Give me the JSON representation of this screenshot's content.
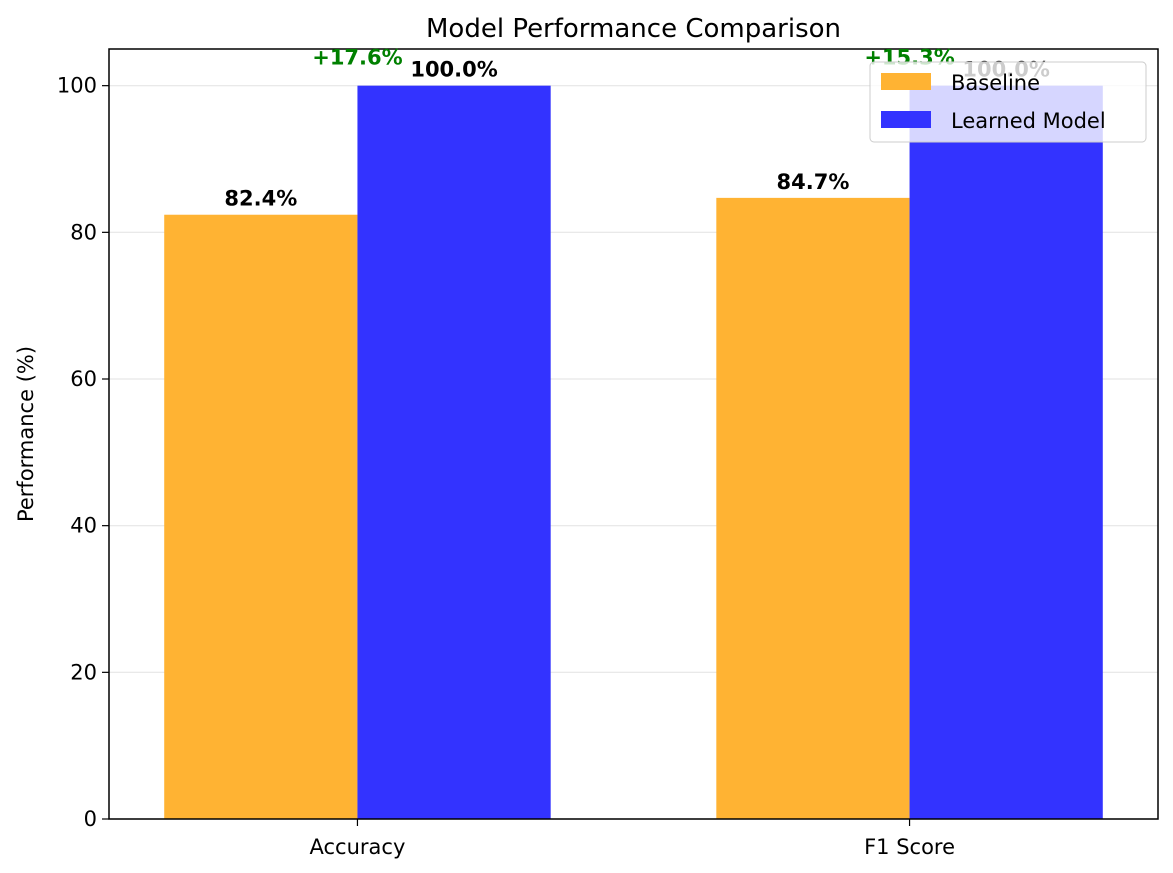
{
  "chart_data": {
    "type": "bar",
    "title": "Model Performance Comparison",
    "xlabel": "",
    "ylabel": "Performance (%)",
    "categories": [
      "Accuracy",
      "F1 Score"
    ],
    "series": [
      {
        "name": "Baseline",
        "values": [
          82.4,
          84.7
        ],
        "labels": [
          "82.4%",
          "84.7%"
        ],
        "color": "#FFB333"
      },
      {
        "name": "Learned Model",
        "values": [
          100.0,
          100.0
        ],
        "labels": [
          "100.0%",
          "100.0%"
        ],
        "color": "#3333FF"
      }
    ],
    "improvements": [
      "+17.6%",
      "+15.3%"
    ],
    "improvement_color": "#008000",
    "ylim": [
      0,
      105
    ],
    "yticks": [
      0,
      20,
      40,
      60,
      80,
      100
    ],
    "grid": true,
    "legend_position": "top-right"
  }
}
